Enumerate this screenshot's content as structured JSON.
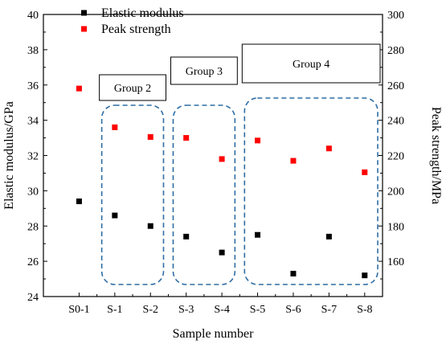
{
  "chart_data": {
    "type": "scatter",
    "categories": [
      "S0-1",
      "S-1",
      "S-2",
      "S-3",
      "S-4",
      "S-5",
      "S-6",
      "S-7",
      "S-8"
    ],
    "xlabel": "Sample number",
    "ylabel_left": "Elastic modulus/GPa",
    "ylabel_right": "Peak strength/MPa",
    "ylim_left": [
      24,
      40
    ],
    "ylim_right": [
      140,
      300
    ],
    "yticks_left": [
      24,
      26,
      28,
      30,
      32,
      34,
      36,
      38,
      40
    ],
    "yticks_right": [
      160,
      180,
      200,
      220,
      240,
      260,
      280,
      300
    ],
    "grid": false,
    "legend_position": "top-left",
    "series": [
      {
        "name": "Elastic modulus",
        "axis": "left",
        "color": "#000000",
        "marker": "square",
        "values": [
          29.4,
          28.6,
          28.0,
          27.4,
          26.5,
          27.5,
          25.3,
          27.4,
          25.2
        ]
      },
      {
        "name": "Peak strength",
        "axis": "right",
        "color": "#ff0000",
        "marker": "square",
        "values": [
          258,
          236,
          230.5,
          230,
          218,
          228.5,
          217,
          224,
          210.5
        ]
      }
    ],
    "annotations": [
      {
        "label": "Group 2",
        "span": [
          "S-1",
          "S-2"
        ]
      },
      {
        "label": "Group 3",
        "span": [
          "S-3",
          "S-4"
        ]
      },
      {
        "label": "Group 4",
        "span": [
          "S-5",
          "S-8"
        ]
      }
    ]
  },
  "colors": {
    "group_box_stroke": "#2e6da4"
  }
}
